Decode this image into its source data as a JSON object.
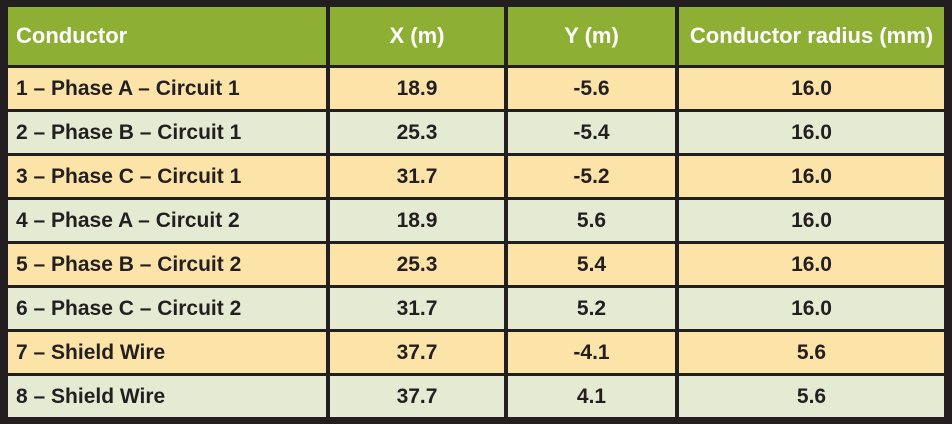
{
  "table": {
    "headers": [
      "Conductor",
      "X (m)",
      "Y (m)",
      "Conductor radius (mm)"
    ],
    "rows": [
      [
        "1 – Phase A – Circuit 1",
        "18.9",
        "-5.6",
        "16.0"
      ],
      [
        "2 – Phase B – Circuit 1",
        "25.3",
        "-5.4",
        "16.0"
      ],
      [
        "3 – Phase C – Circuit 1",
        "31.7",
        "-5.2",
        "16.0"
      ],
      [
        "4 – Phase A – Circuit 2",
        "18.9",
        "5.6",
        "16.0"
      ],
      [
        "5 – Phase B – Circuit 2",
        "25.3",
        "5.4",
        "16.0"
      ],
      [
        "6 – Phase C – Circuit 2",
        "31.7",
        "5.2",
        "16.0"
      ],
      [
        "7 – Shield Wire",
        "37.7",
        "-4.1",
        "5.6"
      ],
      [
        "8 – Shield Wire",
        "37.7",
        "4.1",
        "5.6"
      ]
    ]
  },
  "colors": {
    "header_bg": "#8db034",
    "row_odd_bg": "#fce3a8",
    "row_even_bg": "#e5ebd3",
    "border": "#231f20"
  }
}
